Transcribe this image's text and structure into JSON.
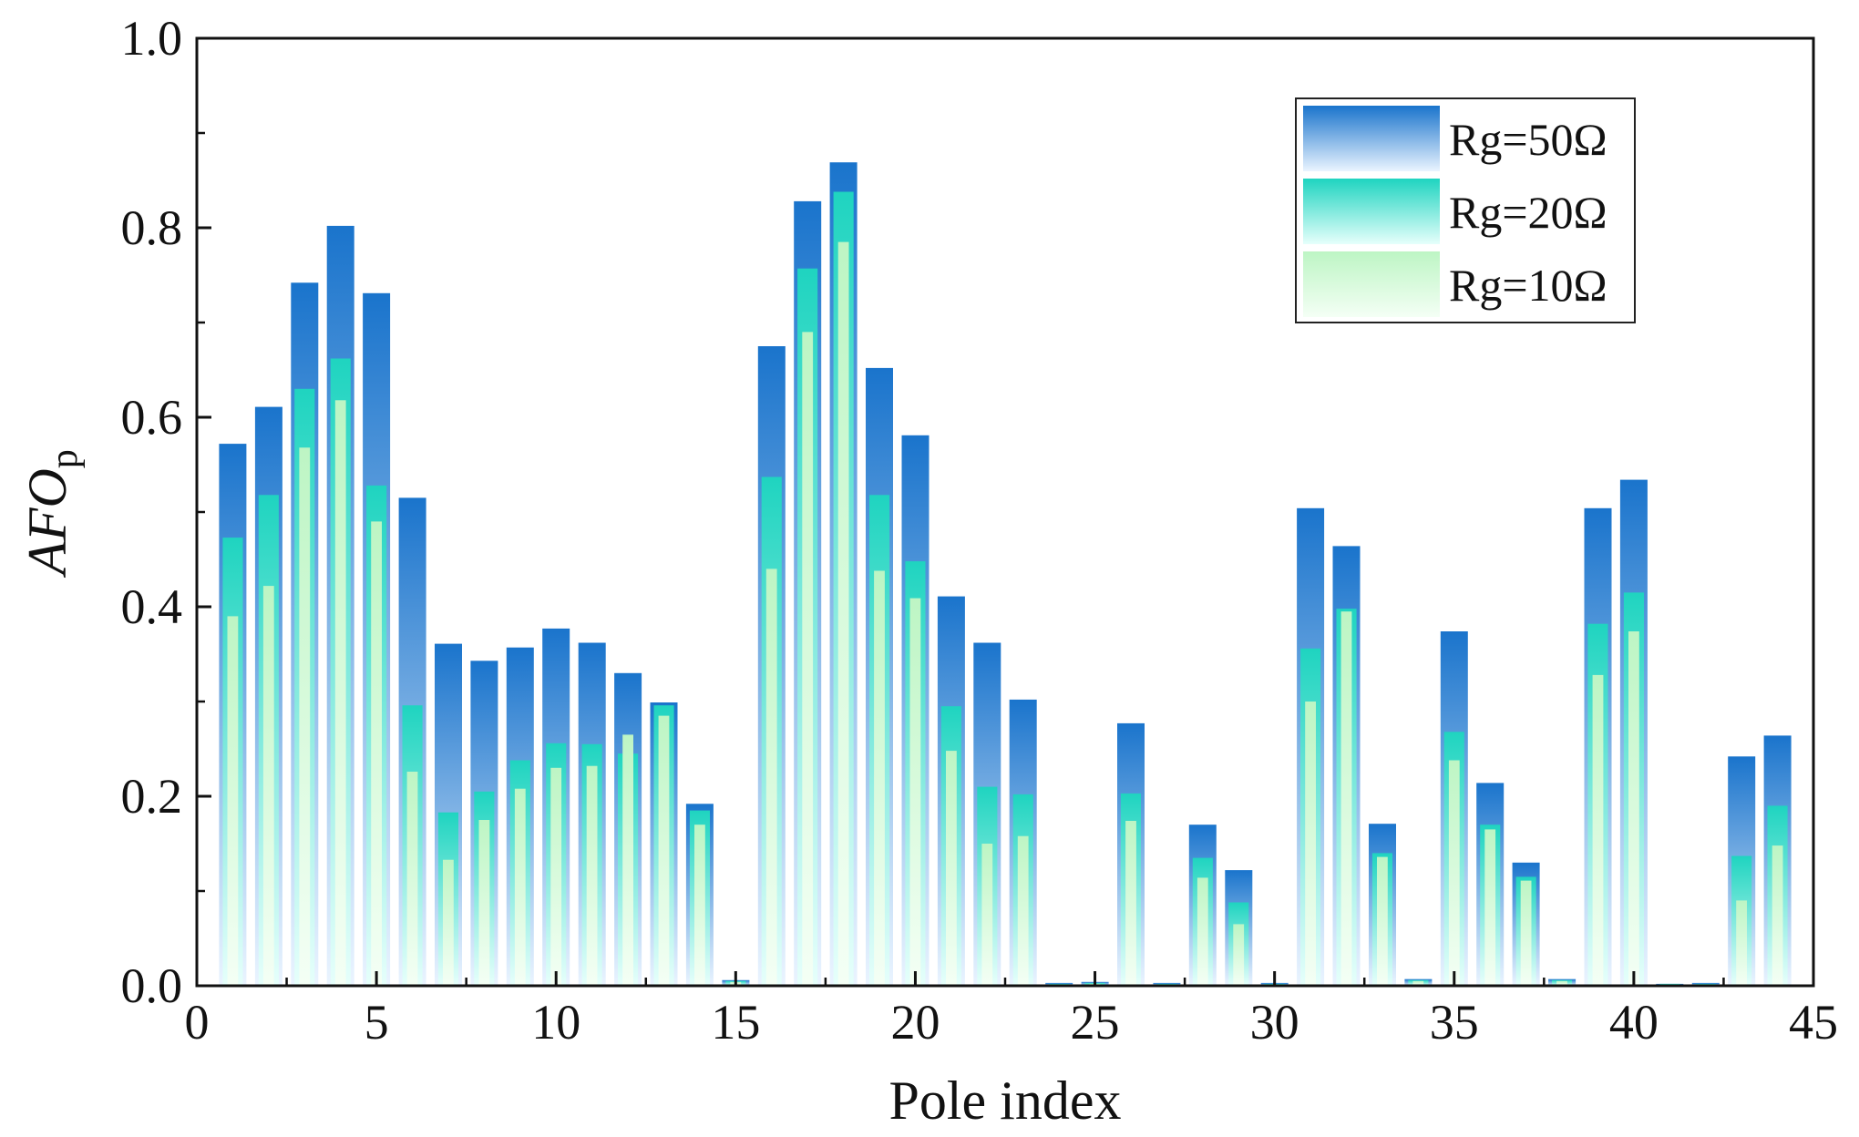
{
  "chart_data": {
    "type": "bar",
    "title": "",
    "xlabel": "Pole index",
    "ylabel": "AFO",
    "ylabel_subscript": "p",
    "xlim": [
      0,
      45
    ],
    "ylim": [
      0,
      1.0
    ],
    "xticks": [
      "0",
      "5",
      "10",
      "15",
      "20",
      "25",
      "30",
      "35",
      "40",
      "45"
    ],
    "yticks": [
      "0.0",
      "0.2",
      "0.4",
      "0.6",
      "0.8",
      "1.0"
    ],
    "grid": false,
    "legend_position": "top-right",
    "categories": [
      1,
      2,
      3,
      4,
      5,
      6,
      7,
      8,
      9,
      10,
      11,
      12,
      13,
      14,
      15,
      16,
      17,
      18,
      19,
      20,
      21,
      22,
      23,
      24,
      25,
      26,
      27,
      28,
      29,
      30,
      31,
      32,
      33,
      34,
      35,
      36,
      37,
      38,
      39,
      40,
      41,
      42,
      43,
      44
    ],
    "series": [
      {
        "name": "Rg=50Ω",
        "color_top": "#1a74cc",
        "color_bottom": "#eaf4ff",
        "values": [
          0.572,
          0.611,
          0.742,
          0.802,
          0.731,
          0.515,
          0.361,
          0.343,
          0.357,
          0.377,
          0.362,
          0.33,
          0.299,
          0.192,
          0.006,
          0.675,
          0.828,
          0.869,
          0.652,
          0.581,
          0.411,
          0.362,
          0.302,
          0.003,
          0.004,
          0.277,
          0.003,
          0.17,
          0.122,
          0.003,
          0.504,
          0.464,
          0.171,
          0.007,
          0.374,
          0.214,
          0.13,
          0.007,
          0.504,
          0.534,
          0.002,
          0.003,
          0.242,
          0.264
        ]
      },
      {
        "name": "Rg=20Ω",
        "color_top": "#1fd4c0",
        "color_bottom": "#e6fffb",
        "values": [
          0.473,
          0.518,
          0.63,
          0.662,
          0.528,
          0.296,
          0.183,
          0.205,
          0.238,
          0.256,
          0.255,
          0.245,
          0.296,
          0.185,
          0.005,
          0.537,
          0.757,
          0.838,
          0.518,
          0.448,
          0.295,
          0.21,
          0.202,
          0.002,
          0.003,
          0.203,
          0.002,
          0.135,
          0.088,
          0.002,
          0.356,
          0.398,
          0.14,
          0.006,
          0.268,
          0.17,
          0.115,
          0.006,
          0.382,
          0.415,
          0.002,
          0.002,
          0.137,
          0.19
        ]
      },
      {
        "name": "Rg=10Ω",
        "color_top": "#bdf5c4",
        "color_bottom": "#f4fff5",
        "values": [
          0.39,
          0.422,
          0.568,
          0.618,
          0.49,
          0.226,
          0.133,
          0.175,
          0.208,
          0.23,
          0.232,
          0.265,
          0.285,
          0.17,
          0.004,
          0.44,
          0.69,
          0.785,
          0.438,
          0.409,
          0.248,
          0.15,
          0.158,
          0.001,
          0.002,
          0.174,
          0.001,
          0.114,
          0.065,
          0.001,
          0.3,
          0.395,
          0.136,
          0.005,
          0.238,
          0.165,
          0.111,
          0.005,
          0.328,
          0.374,
          0.001,
          0.001,
          0.09,
          0.148
        ]
      }
    ]
  }
}
